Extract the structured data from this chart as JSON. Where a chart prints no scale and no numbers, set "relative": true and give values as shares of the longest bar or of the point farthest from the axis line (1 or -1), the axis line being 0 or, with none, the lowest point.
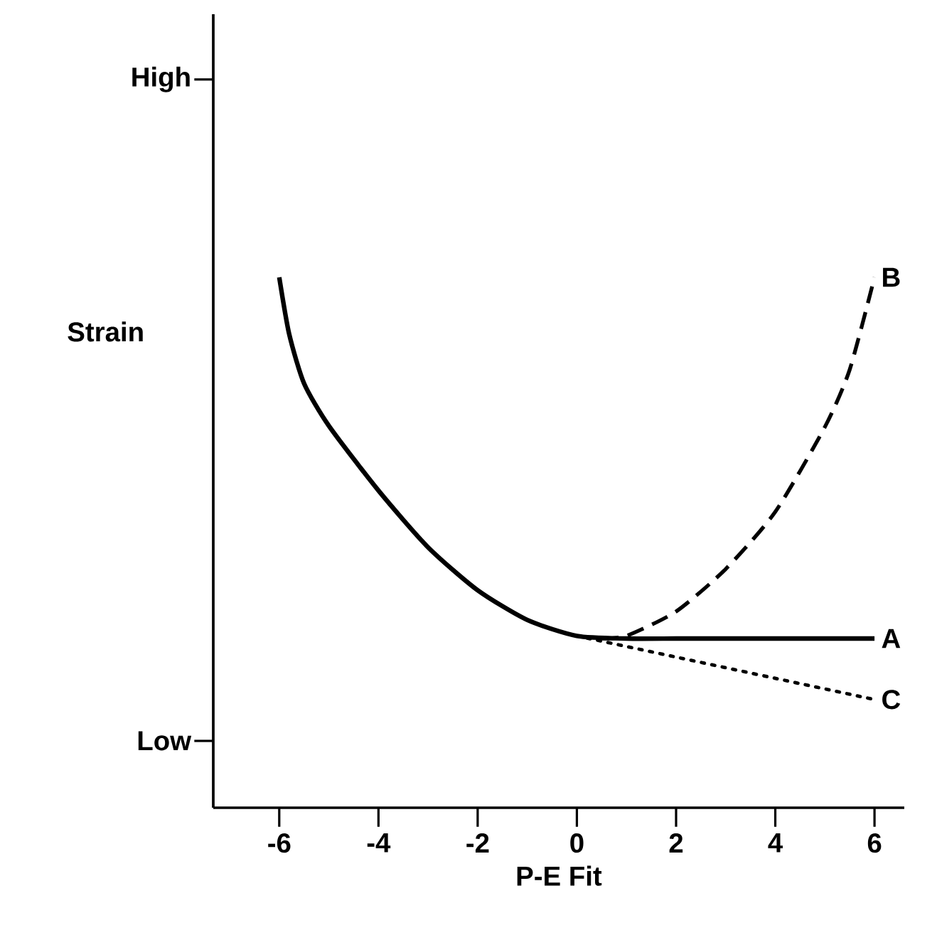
{
  "chart_data": {
    "type": "line",
    "relative": true,
    "xlabel": "P-E Fit",
    "ylabel": "Strain",
    "annotations": [
      "High",
      "Low"
    ],
    "xlim": [
      -7.33,
      6.6
    ],
    "xticks": [
      -6,
      -4,
      -2,
      0,
      2,
      4,
      6
    ],
    "legend": false,
    "grid": false,
    "series": [
      {
        "name": "A",
        "color": "#000000",
        "line_style": "solid",
        "x": [
          -6,
          -5.8,
          -5.5,
          -5,
          -4,
          -3,
          -2,
          -1,
          0,
          1,
          2,
          3,
          4,
          5,
          6
        ],
        "values": [
          1.0,
          0.893,
          0.8,
          0.72,
          0.598,
          0.491,
          0.41,
          0.354,
          0.324,
          0.319,
          0.319,
          0.319,
          0.319,
          0.319,
          0.319
        ]
      },
      {
        "name": "B",
        "color": "#000000",
        "line_style": "dashed",
        "x": [
          0.5,
          1,
          2,
          3,
          4,
          5,
          5.5,
          6
        ],
        "values": [
          0.319,
          0.324,
          0.37,
          0.45,
          0.558,
          0.718,
          0.826,
          1.0
        ]
      },
      {
        "name": "C",
        "color": "#000000",
        "line_style": "dotted",
        "x": [
          0,
          6
        ],
        "values": [
          0.324,
          0.204
        ]
      }
    ]
  }
}
